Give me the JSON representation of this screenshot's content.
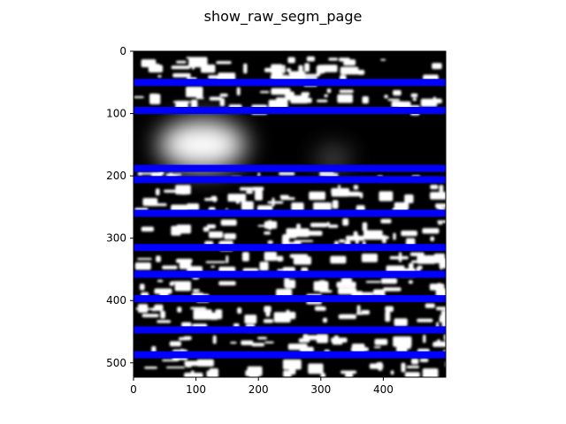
{
  "chart_data": {
    "type": "heatmap",
    "title": "show_raw_segm_page",
    "xlabel": "",
    "ylabel": "",
    "image_width": 500,
    "image_height": 523,
    "xlim": [
      0,
      500
    ],
    "ylim": [
      523,
      0
    ],
    "x_ticks": [
      0,
      100,
      200,
      300,
      400
    ],
    "y_ticks": [
      0,
      100,
      200,
      300,
      400,
      500
    ],
    "grid": false,
    "colormap": "gray",
    "segmentation_line_color": "#0000ff",
    "segmentation_lines_y": [
      50,
      95,
      188,
      206,
      260,
      315,
      358,
      397,
      447,
      487
    ],
    "bright_blobs": [
      {
        "cx": 110,
        "cy": 150,
        "rx": 70,
        "ry": 40,
        "intensity": 1.0
      },
      {
        "cx": 320,
        "cy": 172,
        "rx": 25,
        "ry": 15,
        "intensity": 0.45
      }
    ]
  }
}
